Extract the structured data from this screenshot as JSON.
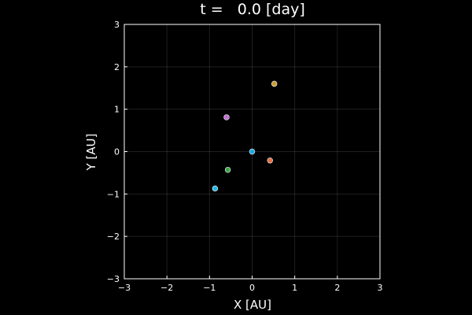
{
  "chart_data": {
    "type": "scatter",
    "title": "t =   0.0 [day]",
    "xlabel": "X [AU]",
    "ylabel": "Y [AU]",
    "xlim": [
      -3,
      3
    ],
    "ylim": [
      -3,
      3
    ],
    "xticks": [
      -3,
      -2,
      -1,
      0,
      1,
      2,
      3
    ],
    "yticks": [
      -3,
      -2,
      -1,
      0,
      1,
      2,
      3
    ],
    "xtick_labels": [
      "−3",
      "−2",
      "−1",
      "0",
      "1",
      "2",
      "3"
    ],
    "ytick_labels": [
      "−3",
      "−2",
      "−1",
      "0",
      "1",
      "2",
      "3"
    ],
    "grid": true,
    "legend": "none",
    "background": "#000000",
    "foreground": "#ffffff",
    "series": [
      {
        "x": [
          0.0
        ],
        "y": [
          0.0
        ],
        "color": "#1aa6e0"
      },
      {
        "x": [
          0.42
        ],
        "y": [
          -0.21
        ],
        "color": "#e26f46"
      },
      {
        "x": [
          -0.57
        ],
        "y": [
          -0.43
        ],
        "color": "#3da44d"
      },
      {
        "x": [
          -0.6
        ],
        "y": [
          0.81
        ],
        "color": "#c271d2"
      },
      {
        "x": [
          0.52
        ],
        "y": [
          1.6
        ],
        "color": "#c79b2f"
      },
      {
        "x": [
          -0.87
        ],
        "y": [
          -0.87
        ],
        "color": "#1fb8e8"
      }
    ]
  }
}
